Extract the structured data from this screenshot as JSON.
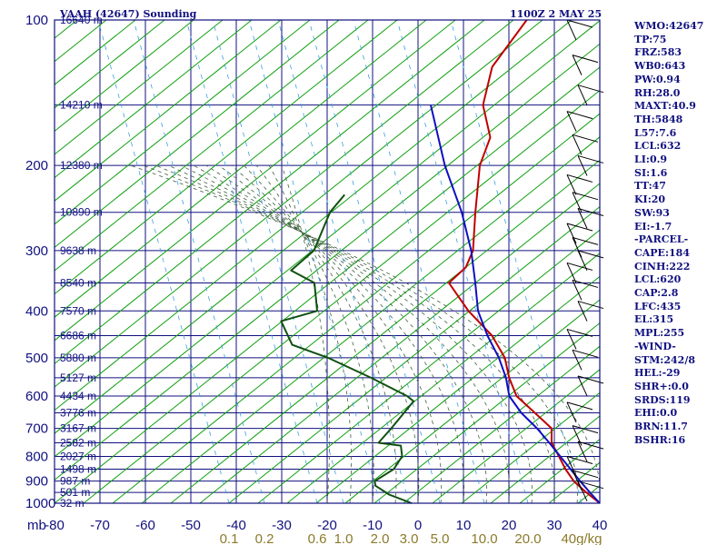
{
  "header": {
    "station": "VAAH (42647) Sounding",
    "time": "1100Z  2 MAY 25"
  },
  "colors": {
    "frame": "#101080",
    "temperature": "#c00000",
    "dewpoint": "#105010",
    "parcel": "#1010c0",
    "dry_adiabat": "#10a010",
    "moist_adiabat": "#406040",
    "mixing_ratio": "#3aa0e0",
    "mixing_label": "#8b7a2a",
    "wind": "#000000"
  },
  "indices": [
    "WMO:42647",
    "TP:75",
    "FRZ:583",
    "WB0:643",
    "PW:0.94",
    "RH:28.0",
    "MAXT:40.9",
    "TH:5848",
    "L57:7.6",
    "LCL:632",
    "LI:0.9",
    "SI:1.6",
    "TT:47",
    "KI:20",
    "SW:93",
    "EI:-1.7",
    "-PARCEL-",
    "CAPE:184",
    "CINH:222",
    "LCL:620",
    "CAP:2.8",
    "LFC:435",
    "EL:315",
    "MPL:255",
    "-WIND-",
    "STM:242/8",
    "HEL:-29",
    "SHR+:0.0",
    "SRDS:119",
    "EHI:0.0",
    "BRN:11.7",
    "BSHR:16"
  ],
  "chart_data": {
    "type": "line",
    "title": "VAAH (42647) Sounding",
    "xlabel": "°C",
    "ylabel": "mb",
    "ylim": [
      1000,
      100
    ],
    "xlim": [
      -80,
      0
    ],
    "y_scale": "log",
    "grid": true,
    "pressure_ticks": [
      "100",
      "200",
      "300",
      "400",
      "500",
      "600",
      "700",
      "800",
      "900",
      "1000"
    ],
    "pressure_tick_values": [
      100,
      200,
      300,
      400,
      500,
      600,
      700,
      800,
      900,
      1000
    ],
    "temperature_ticks": [
      "-80",
      "-70",
      "-60",
      "-50",
      "-40",
      "-30",
      "-20",
      "-10",
      "0",
      "10",
      "20",
      "30",
      "40"
    ],
    "temperature_tick_values": [
      -80,
      -70,
      -60,
      -50,
      -40,
      -30,
      -20,
      -10,
      0,
      10,
      20,
      30,
      40
    ],
    "x_axis_unit_label": "mb",
    "mixing_ratio_ticks": [
      "0.1",
      "0.2",
      "0.6",
      "1.0",
      "2.0",
      "3.0",
      "5.0",
      "10.0",
      "20.0",
      "40g/kg"
    ],
    "mixing_ratio_values": [
      0.1,
      0.2,
      0.6,
      1.0,
      2.0,
      3.0,
      5.0,
      10.0,
      20.0,
      40.0
    ],
    "height_labels": [
      {
        "p": 100,
        "text": "16640 m"
      },
      {
        "p": 150,
        "text": "14210 m"
      },
      {
        "p": 200,
        "text": "12380 m"
      },
      {
        "p": 250,
        "text": "10890 m"
      },
      {
        "p": 300,
        "text": "9638 m"
      },
      {
        "p": 350,
        "text": "8540 m"
      },
      {
        "p": 400,
        "text": "7570 m"
      },
      {
        "p": 450,
        "text": "6686 m"
      },
      {
        "p": 500,
        "text": "5880 m"
      },
      {
        "p": 550,
        "text": "5127 m"
      },
      {
        "p": 600,
        "text": "4434 m"
      },
      {
        "p": 650,
        "text": "3776 m"
      },
      {
        "p": 700,
        "text": "3167 m"
      },
      {
        "p": 750,
        "text": "2582 m"
      },
      {
        "p": 800,
        "text": "2027 m"
      },
      {
        "p": 850,
        "text": "1498 m"
      },
      {
        "p": 900,
        "text": "987 m"
      },
      {
        "p": 950,
        "text": "501 m"
      },
      {
        "p": 1000,
        "text": "32 m"
      }
    ],
    "series": [
      {
        "key": "temperature",
        "points": [
          [
            100,
            -76.1
          ],
          [
            125,
            -74.0
          ],
          [
            150,
            -68.1
          ],
          [
            175,
            -59.8
          ],
          [
            200,
            -56.3
          ],
          [
            250,
            -47.6
          ],
          [
            300,
            -40.2
          ],
          [
            325,
            -38.3
          ],
          [
            350,
            -38.8
          ],
          [
            400,
            -28.7
          ],
          [
            450,
            -18.4
          ],
          [
            500,
            -11.0
          ],
          [
            550,
            -5.9
          ],
          [
            600,
            -0.5
          ],
          [
            650,
            7.0
          ],
          [
            700,
            13.9
          ],
          [
            750,
            16.9
          ],
          [
            800,
            21.3
          ],
          [
            850,
            25.4
          ],
          [
            900,
            29.7
          ],
          [
            950,
            34.8
          ],
          [
            1000,
            40.0
          ]
        ]
      },
      {
        "key": "dewpoint",
        "points": [
          [
            230,
            -80.0
          ],
          [
            250,
            -79.6
          ],
          [
            300,
            -75.2
          ],
          [
            330,
            -76.1
          ],
          [
            350,
            -68.4
          ],
          [
            400,
            -62.0
          ],
          [
            420,
            -67.8
          ],
          [
            470,
            -60.5
          ],
          [
            500,
            -49.9
          ],
          [
            550,
            -36.3
          ],
          [
            600,
            -24.6
          ],
          [
            615,
            -22.1
          ],
          [
            700,
            -21.4
          ],
          [
            750,
            -21.2
          ],
          [
            760,
            -15.7
          ],
          [
            800,
            -13.2
          ],
          [
            850,
            -12.4
          ],
          [
            900,
            -14.1
          ],
          [
            920,
            -13.0
          ],
          [
            960,
            -8.1
          ],
          [
            1000,
            -1.4
          ]
        ]
      },
      {
        "key": "parcel",
        "points": [
          [
            150,
            -79.6
          ],
          [
            200,
            -64.0
          ],
          [
            250,
            -50.6
          ],
          [
            300,
            -40.6
          ],
          [
            350,
            -33.0
          ],
          [
            400,
            -26.6
          ],
          [
            450,
            -19.4
          ],
          [
            500,
            -12.3
          ],
          [
            550,
            -6.6
          ],
          [
            600,
            -2.1
          ],
          [
            650,
            4.0
          ],
          [
            700,
            10.7
          ],
          [
            750,
            16.4
          ],
          [
            800,
            21.6
          ],
          [
            850,
            26.5
          ],
          [
            900,
            31.1
          ],
          [
            950,
            35.6
          ],
          [
            1000,
            40.0
          ]
        ]
      }
    ]
  }
}
